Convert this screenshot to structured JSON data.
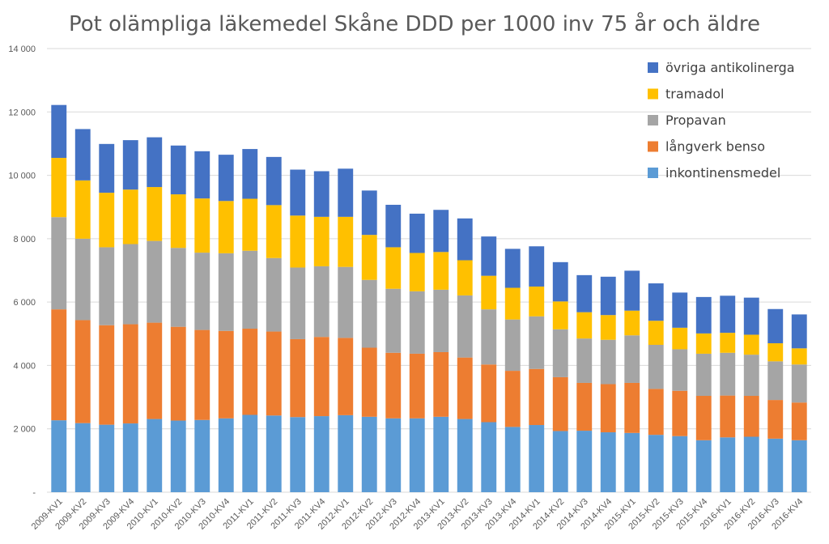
{
  "chart_data": {
    "type": "bar",
    "stacked": true,
    "title": "Pot olämpliga läkemedel Skåne DDD per 1000 inv 75 år och äldre",
    "xlabel": "",
    "ylabel": "",
    "ylim": [
      0,
      14000
    ],
    "yticks": [
      0,
      2000,
      4000,
      6000,
      8000,
      10000,
      12000,
      14000
    ],
    "ytick_labels": [
      "-",
      "2 000",
      "4 000",
      "6 000",
      "8 000",
      "10 000",
      "12 000",
      "14 000"
    ],
    "grid": true,
    "legend_position": "top-right",
    "categories": [
      "2009-KV1",
      "2009-KV2",
      "2009-KV3",
      "2009-KV4",
      "2010-KV1",
      "2010-KV2",
      "2010-KV3",
      "2010-KV4",
      "2011-KV1",
      "2011-KV2",
      "2011-KV3",
      "2011-KV4",
      "2012-KV1",
      "2012-KV2",
      "2012-KV3",
      "2012-KV4",
      "2013-KV1",
      "2013-KV2",
      "2013-KV3",
      "2013-KV4",
      "2014-KV1",
      "2014-KV2",
      "2014-KV3",
      "2014-KV4",
      "2015-KV1",
      "2015-KV2",
      "2015-KV3",
      "2015-KV4",
      "2016-KV1",
      "2016-KV2",
      "2016-KV3",
      "2016-KV4"
    ],
    "series": [
      {
        "name": "inkontinensmedel",
        "color": "#5b9bd5",
        "values": [
          2270,
          2180,
          2130,
          2170,
          2310,
          2260,
          2280,
          2330,
          2440,
          2420,
          2370,
          2400,
          2430,
          2380,
          2330,
          2330,
          2380,
          2310,
          2210,
          2060,
          2120,
          1930,
          1940,
          1890,
          1870,
          1810,
          1770,
          1640,
          1730,
          1750,
          1690,
          1640
        ]
      },
      {
        "name": "långverk benso",
        "color": "#ed7d31",
        "values": [
          3500,
          3250,
          3140,
          3130,
          3040,
          2960,
          2840,
          2760,
          2720,
          2650,
          2460,
          2500,
          2440,
          2180,
          2070,
          2040,
          2040,
          1940,
          1820,
          1770,
          1770,
          1700,
          1510,
          1520,
          1580,
          1450,
          1430,
          1400,
          1320,
          1290,
          1220,
          1190
        ]
      },
      {
        "name": "Propavan",
        "color": "#a5a5a5",
        "values": [
          2910,
          2570,
          2460,
          2530,
          2580,
          2490,
          2440,
          2450,
          2460,
          2320,
          2260,
          2230,
          2240,
          2140,
          2020,
          1970,
          1970,
          1960,
          1740,
          1620,
          1660,
          1510,
          1400,
          1400,
          1500,
          1390,
          1310,
          1330,
          1350,
          1300,
          1220,
          1200
        ]
      },
      {
        "name": "tramadol",
        "color": "#ffc000",
        "values": [
          1870,
          1840,
          1720,
          1720,
          1700,
          1690,
          1710,
          1650,
          1640,
          1670,
          1640,
          1560,
          1580,
          1420,
          1310,
          1210,
          1190,
          1110,
          1060,
          1000,
          940,
          880,
          830,
          780,
          780,
          760,
          680,
          640,
          630,
          630,
          570,
          510
        ]
      },
      {
        "name": "övriga antikolinerga",
        "color": "#4472c4",
        "values": [
          1670,
          1620,
          1540,
          1560,
          1570,
          1540,
          1490,
          1460,
          1570,
          1520,
          1450,
          1440,
          1520,
          1400,
          1340,
          1240,
          1330,
          1320,
          1240,
          1230,
          1270,
          1240,
          1170,
          1210,
          1260,
          1180,
          1110,
          1150,
          1170,
          1170,
          1080,
          1070
        ]
      }
    ]
  }
}
